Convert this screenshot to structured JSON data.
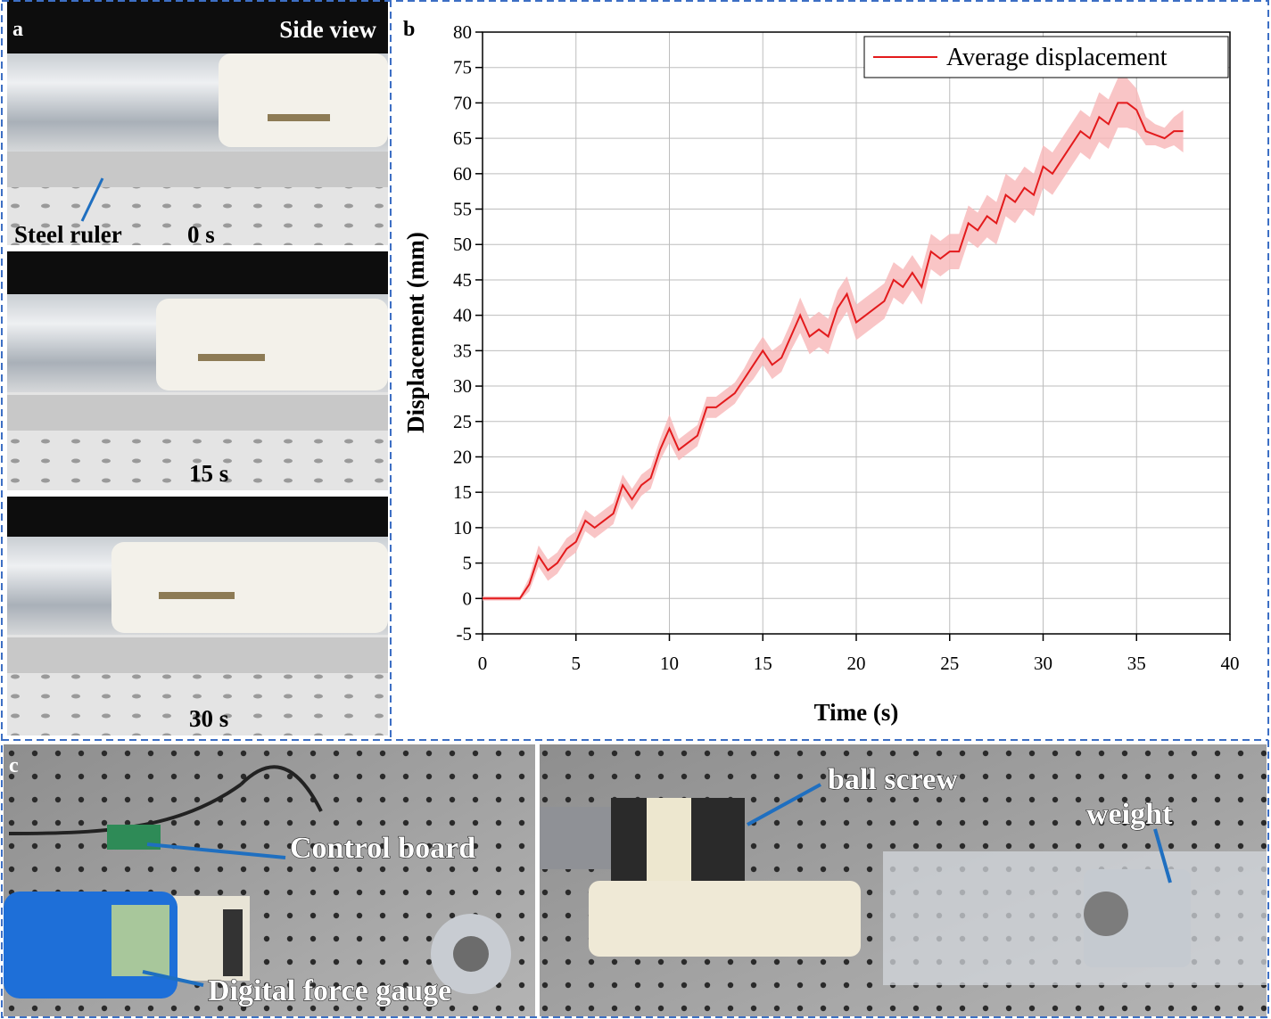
{
  "chart_data": {
    "type": "line",
    "panel_label": "b",
    "xlabel": "Time (s)",
    "ylabel": "Displacement (mm)",
    "x": [
      0,
      0.5,
      1,
      1.5,
      2,
      2.5,
      3,
      3.5,
      4,
      4.5,
      5,
      5.5,
      6,
      6.5,
      7,
      7.5,
      8,
      8.5,
      9,
      9.5,
      10,
      10.5,
      11,
      11.5,
      12,
      12.5,
      13,
      13.5,
      14,
      14.5,
      15,
      15.5,
      16,
      16.5,
      17,
      17.5,
      18,
      18.5,
      19,
      19.5,
      20,
      20.5,
      21,
      21.5,
      22,
      22.5,
      23,
      23.5,
      24,
      24.5,
      25,
      25.5,
      26,
      26.5,
      27,
      27.5,
      28,
      28.5,
      29,
      29.5,
      30,
      30.5,
      31,
      31.5,
      32,
      32.5,
      33,
      33.5,
      34,
      34.5,
      35,
      35.5,
      36,
      36.5,
      37,
      37.5
    ],
    "series": [
      {
        "name": "Average displacement",
        "color": "#e31a1c",
        "band_color": "#f7b6b8",
        "values": [
          0,
          0,
          0,
          0,
          0,
          2,
          6,
          4,
          5,
          7,
          8,
          11,
          10,
          11,
          12,
          16,
          14,
          16,
          17,
          21,
          24,
          21,
          22,
          23,
          27,
          27,
          28,
          29,
          31,
          33,
          35,
          33,
          34,
          37,
          40,
          37,
          38,
          37,
          41,
          43,
          39,
          40,
          41,
          42,
          45,
          44,
          46,
          44,
          49,
          48,
          49,
          49,
          53,
          52,
          54,
          53,
          57,
          56,
          58,
          57,
          61,
          60,
          62,
          64,
          66,
          65,
          68,
          67,
          70,
          70,
          69,
          66,
          65.5,
          65,
          66,
          66
        ],
        "error": [
          0.3,
          0.3,
          0.3,
          0.3,
          0.3,
          1,
          1.5,
          1.5,
          1.5,
          1.5,
          1.5,
          1.5,
          1.5,
          1.5,
          1.5,
          1.5,
          1.5,
          1.5,
          1.5,
          1.5,
          2,
          1.5,
          1.5,
          1.5,
          1.5,
          1.5,
          1.5,
          1.5,
          1.5,
          2,
          2,
          2,
          2,
          2,
          2.5,
          2.5,
          2.5,
          2.5,
          2.5,
          2.5,
          2.5,
          2.5,
          2.5,
          2.5,
          2.5,
          2.5,
          2.5,
          2.5,
          2.5,
          2.5,
          2.5,
          2.5,
          2.5,
          2.5,
          3,
          3,
          3,
          3,
          3,
          3,
          3,
          3,
          3,
          3,
          3,
          3,
          3.5,
          3.5,
          3.5,
          3.5,
          3,
          2,
          1.5,
          1.5,
          2,
          3
        ]
      }
    ],
    "xlim": [
      0,
      40
    ],
    "ylim": [
      -5,
      80
    ],
    "xticks": [
      0,
      5,
      10,
      15,
      20,
      25,
      30,
      35,
      40
    ],
    "yticks": [
      -5,
      0,
      5,
      10,
      15,
      20,
      25,
      30,
      35,
      40,
      45,
      50,
      55,
      60,
      65,
      70,
      75,
      80
    ],
    "grid": true,
    "legend_position": "upper right"
  },
  "panel_a": {
    "label": "a",
    "view": "Side view",
    "ruler": "Steel ruler",
    "times": [
      "0 s",
      "15 s",
      "30 s"
    ]
  },
  "panel_c": {
    "label": "c",
    "control_board": "Control board",
    "force_gauge": "Digital force gauge",
    "ball_screw": "ball screw",
    "weight": "weight"
  }
}
